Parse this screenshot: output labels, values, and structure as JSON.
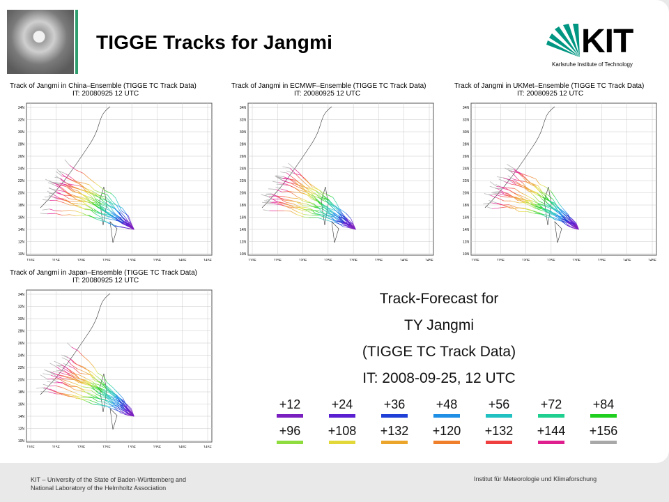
{
  "header": {
    "title": "TIGGE Tracks for Jangmi"
  },
  "logo": {
    "text": "KIT",
    "subtitle": "Karlsruhe Institute of Technology",
    "color": "#009682"
  },
  "plots": [
    {
      "title": "Track of Jangmi in China–Ensemble (TIGGE TC Track Data)",
      "it": "IT: 20080925 12 UTC"
    },
    {
      "title": "Track of Jangmi in ECMWF–Ensemble (TIGGE TC Track Data)",
      "it": "IT: 20080925 12 UTC"
    },
    {
      "title": "Track of Jangmi in UKMet–Ensemble (TIGGE TC Track Data)",
      "it": "IT: 20080925 12 UTC"
    },
    {
      "title": "Track of Jangmi in Japan–Ensemble (TIGGE TC Track Data)",
      "it": "IT: 20080925 12 UTC"
    }
  ],
  "axes": {
    "x_ticks": [
      "110E",
      "115E",
      "120E",
      "125E",
      "130E",
      "135E",
      "140E",
      "145E"
    ],
    "y_ticks": [
      "34N",
      "32N",
      "30N",
      "28N",
      "26N",
      "24N",
      "22N",
      "20N",
      "18N",
      "16N",
      "14N",
      "12N",
      "10N"
    ]
  },
  "forecast": {
    "line1": "Track-Forecast for",
    "line2": "TY Jangmi",
    "line3": "(TIGGE TC Track Data)",
    "line4": "IT: 2008-09-25, 12 UTC"
  },
  "legend": {
    "row1": [
      {
        "label": "+12",
        "color": "#7a1fbf"
      },
      {
        "label": "+24",
        "color": "#5a1fd0"
      },
      {
        "label": "+36",
        "color": "#1f3fd6"
      },
      {
        "label": "+48",
        "color": "#1f8fe6"
      },
      {
        "label": "+56",
        "color": "#22c1c1"
      },
      {
        "label": "+72",
        "color": "#1fcf8f"
      },
      {
        "label": "+84",
        "color": "#1fcf1f"
      }
    ],
    "row2": [
      {
        "label": "+96",
        "color": "#8fdc3f"
      },
      {
        "label": "+108",
        "color": "#e2d83a"
      },
      {
        "label": "+132",
        "color": "#eaa52a"
      },
      {
        "label": "+120",
        "color": "#ef7f2a"
      },
      {
        "label": "+132",
        "color": "#ef3f3f"
      },
      {
        "label": "+144",
        "color": "#e01f8f"
      },
      {
        "label": "+156",
        "color": "#a8a8a8"
      }
    ]
  },
  "footer": {
    "left_line1": "KIT – University of the State of Baden-Württemberg and",
    "left_line2": "National Laboratory of the Helmholtz Association",
    "right": "Institut für Meteorologie und Klimaforschung"
  }
}
